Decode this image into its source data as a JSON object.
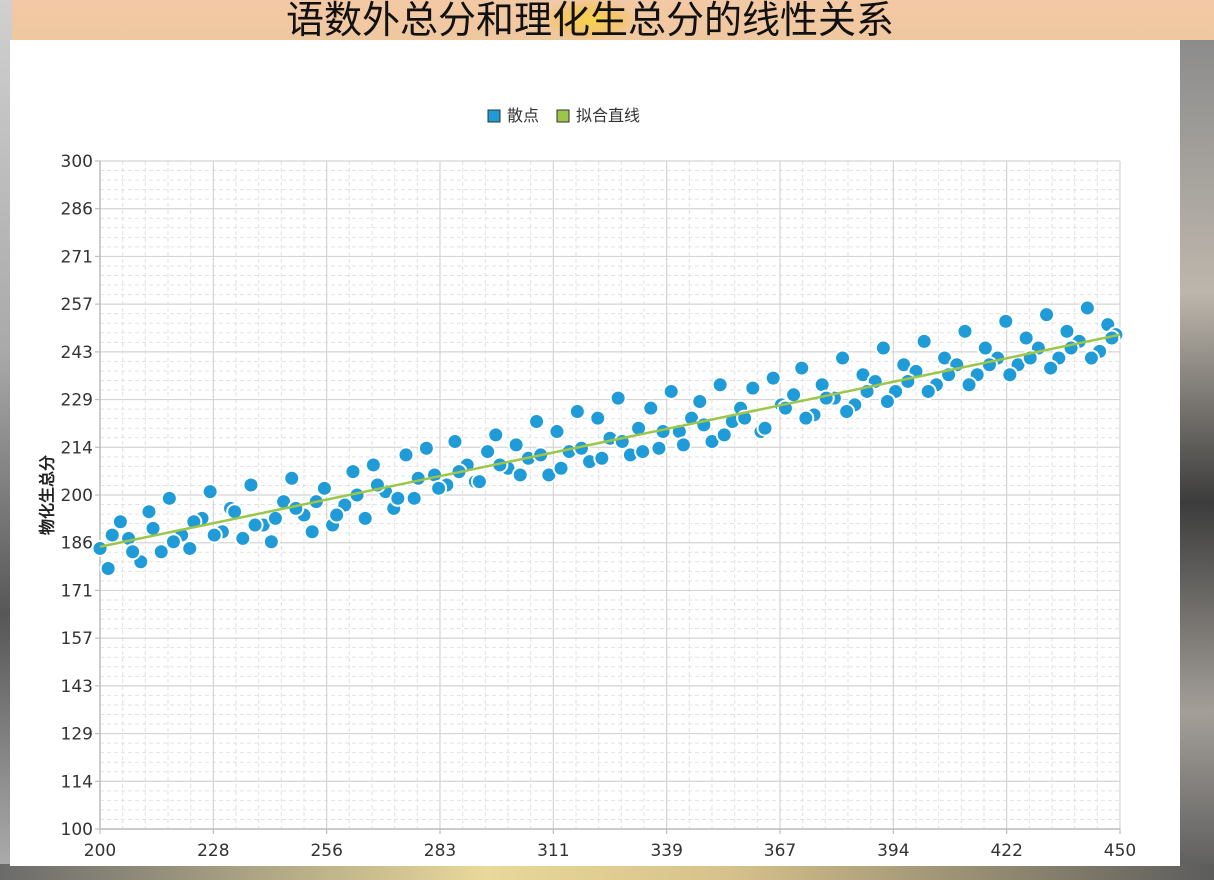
{
  "chart_data": {
    "type": "scatter",
    "title": "语数外总分和理化生总分的线性关系",
    "xlabel": "",
    "ylabel": "物化生总分",
    "xlim": [
      200,
      450
    ],
    "ylim": [
      100,
      300
    ],
    "x_ticks": [
      "200",
      "228",
      "256",
      "283",
      "311",
      "339",
      "367",
      "394",
      "422",
      "450"
    ],
    "y_ticks": [
      "300",
      "286",
      "271",
      "257",
      "243",
      "229",
      "214",
      "200",
      "186",
      "171",
      "157",
      "143",
      "129",
      "114",
      "100"
    ],
    "grid": true,
    "legend": {
      "placement": "top-center"
    },
    "series": [
      {
        "name": "散点",
        "type": "scatter",
        "color": "#1f9bd7",
        "x": [
          200,
          202,
          205,
          207,
          210,
          212,
          215,
          217,
          220,
          222,
          225,
          227,
          230,
          232,
          235,
          237,
          240,
          242,
          245,
          247,
          250,
          252,
          255,
          257,
          260,
          262,
          265,
          267,
          270,
          272,
          275,
          277,
          280,
          282,
          285,
          287,
          290,
          292,
          295,
          297,
          300,
          302,
          305,
          307,
          310,
          312,
          315,
          317,
          320,
          322,
          325,
          327,
          330,
          332,
          335,
          337,
          340,
          342,
          345,
          347,
          350,
          352,
          355,
          357,
          360,
          362,
          365,
          367,
          370,
          372,
          375,
          377,
          380,
          382,
          385,
          387,
          390,
          392,
          395,
          397,
          400,
          402,
          405,
          407,
          410,
          412,
          415,
          417,
          420,
          422,
          425,
          427,
          430,
          432,
          435,
          437,
          440,
          442,
          445,
          447,
          449,
          203,
          208,
          213,
          218,
          223,
          228,
          233,
          238,
          243,
          248,
          253,
          258,
          263,
          268,
          273,
          278,
          283,
          288,
          293,
          298,
          303,
          308,
          313,
          318,
          323,
          328,
          333,
          338,
          343,
          348,
          353,
          358,
          363,
          368,
          373,
          378,
          383,
          388,
          393,
          398,
          403,
          408,
          413,
          418,
          423,
          428,
          433,
          438,
          443,
          448
        ],
        "y": [
          184,
          178,
          192,
          187,
          180,
          195,
          183,
          199,
          188,
          184,
          193,
          201,
          189,
          196,
          187,
          203,
          191,
          186,
          198,
          205,
          194,
          189,
          202,
          191,
          197,
          207,
          193,
          209,
          201,
          196,
          212,
          199,
          214,
          206,
          203,
          216,
          209,
          204,
          213,
          218,
          208,
          215,
          211,
          222,
          206,
          219,
          213,
          225,
          210,
          223,
          217,
          229,
          212,
          220,
          226,
          214,
          231,
          219,
          223,
          228,
          216,
          233,
          222,
          226,
          232,
          219,
          235,
          227,
          230,
          238,
          224,
          233,
          229,
          241,
          227,
          236,
          234,
          244,
          231,
          239,
          237,
          246,
          233,
          241,
          239,
          249,
          236,
          244,
          241,
          252,
          239,
          247,
          244,
          254,
          241,
          249,
          246,
          256,
          243,
          251,
          248,
          188,
          183,
          190,
          186,
          192,
          188,
          195,
          191,
          193,
          196,
          198,
          194,
          200,
          203,
          199,
          205,
          202,
          207,
          204,
          209,
          206,
          212,
          208,
          214,
          211,
          216,
          213,
          219,
          215,
          221,
          218,
          223,
          220,
          226,
          223,
          229,
          225,
          231,
          228,
          234,
          231,
          236,
          233,
          239,
          236,
          241,
          238,
          244,
          241,
          247
        ]
      },
      {
        "name": "拟合直线",
        "type": "line",
        "color": "#9bc64a",
        "x": [
          200,
          450
        ],
        "y": [
          184.5,
          248.0
        ]
      }
    ]
  }
}
